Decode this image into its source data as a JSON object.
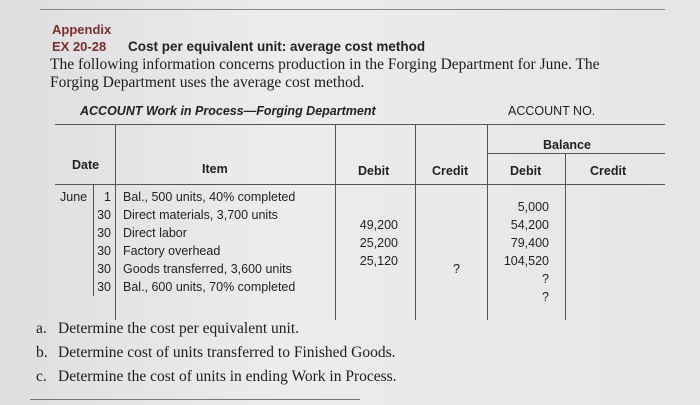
{
  "header": {
    "section": "Appendix",
    "exercise": "EX 20-28",
    "title": "Cost per equivalent unit: average cost method",
    "intro": [
      "The following information concerns production in the Forging Department for June. The",
      "Forging Department uses the average cost method."
    ]
  },
  "account": {
    "name": "ACCOUNT Work in Process—Forging Department",
    "number_label": "ACCOUNT NO."
  },
  "table": {
    "columns": {
      "date": "Date",
      "item": "Item",
      "debit": "Debit",
      "credit": "Credit",
      "balance": "Balance",
      "balance_debit": "Debit",
      "balance_credit": "Credit"
    },
    "rows": [
      {
        "month": "June",
        "day": "1",
        "item": "Bal., 500 units, 40% completed",
        "balance_debit": "5,000"
      },
      {
        "day": "30",
        "item": "Direct materials, 3,700 units",
        "debit": "49,200",
        "balance_debit": "54,200"
      },
      {
        "day": "30",
        "item": "Direct labor",
        "debit": "25,200",
        "balance_debit": "79,400"
      },
      {
        "day": "30",
        "item": "Factory overhead",
        "debit": "25,120",
        "balance_debit": "104,520"
      },
      {
        "day": "30",
        "item": "Goods transferred, 3,600 units",
        "credit": "?",
        "balance_debit": "?"
      },
      {
        "day": "30",
        "item": "Bal., 600 units, 70% completed",
        "balance_debit": "?"
      }
    ]
  },
  "questions": [
    {
      "letter": "a.",
      "text": "Determine the cost per equivalent unit."
    },
    {
      "letter": "b.",
      "text": "Determine cost of units transferred to Finished Goods."
    },
    {
      "letter": "c.",
      "text": "Determine the cost of units in ending Work in Process."
    }
  ]
}
